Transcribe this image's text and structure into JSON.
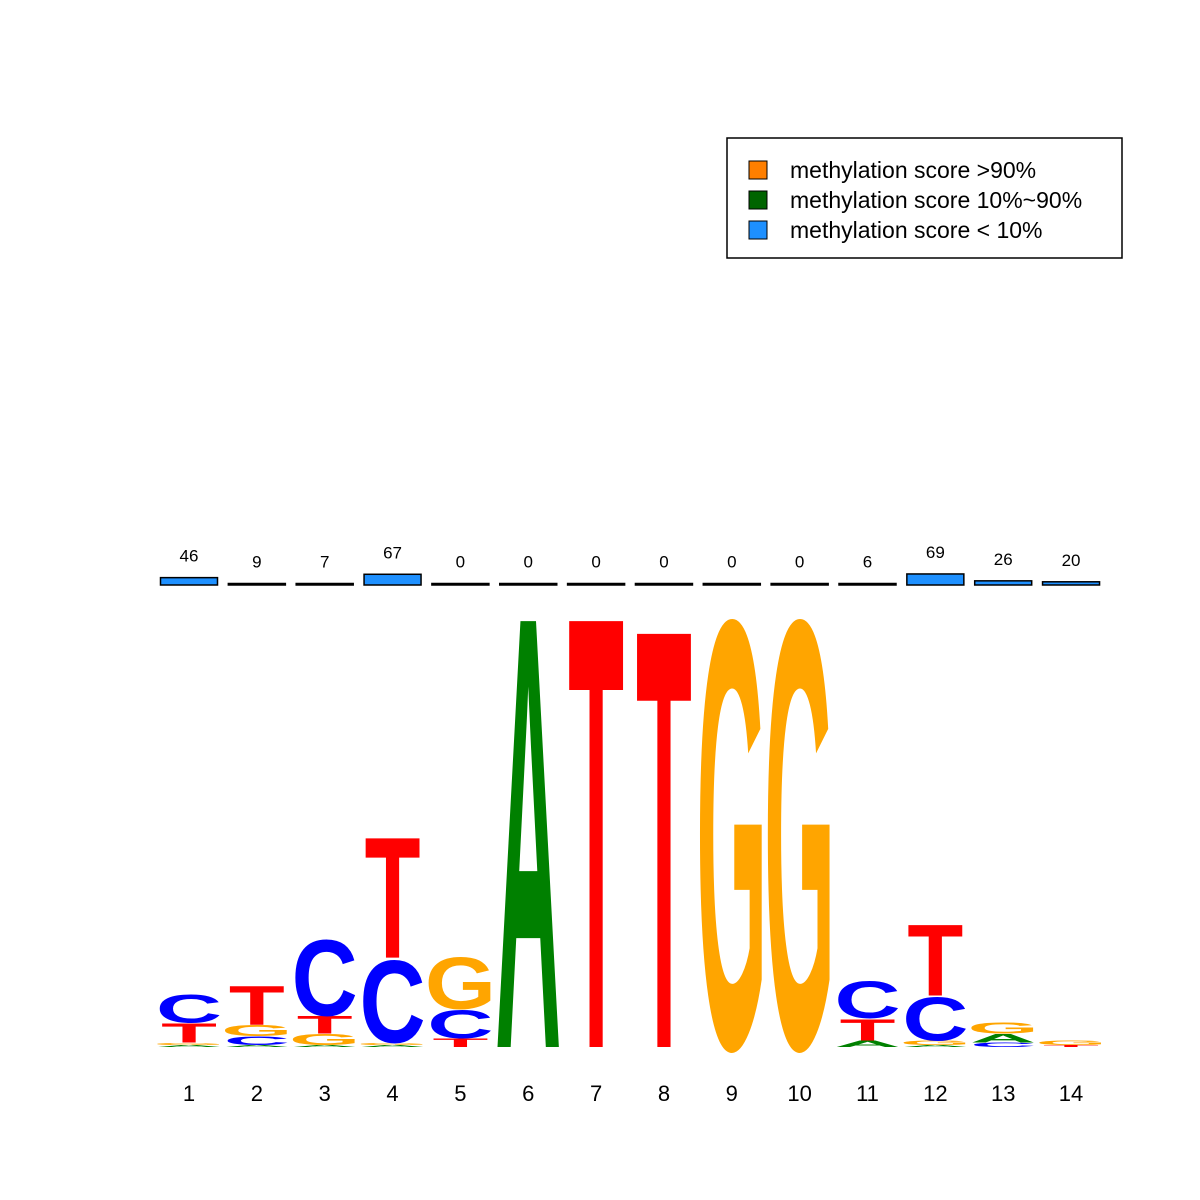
{
  "chart_data": {
    "type": "sequence-logo",
    "legend": {
      "placement": "top-right",
      "entries": [
        {
          "label": "methylation score >90%",
          "color": "#FF7F00"
        },
        {
          "label": "methylation score 10%~90%",
          "color": "#006400"
        },
        {
          "label": "methylation score < 10%",
          "color": "#1E90FF"
        }
      ]
    },
    "letter_colors": {
      "A": "#008000",
      "C": "#0000FF",
      "G": "#FFA500",
      "T": "#FF0000"
    },
    "positions": [
      {
        "pos": "1",
        "count": "46",
        "meth": 0.46,
        "letters": [
          [
            "A",
            0.01
          ],
          [
            "G",
            0.01
          ],
          [
            "T",
            0.09
          ],
          [
            "C",
            0.13
          ]
        ]
      },
      {
        "pos": "2",
        "count": "9",
        "meth": 0.09,
        "letters": [
          [
            "A",
            0.01
          ],
          [
            "C",
            0.04
          ],
          [
            "G",
            0.05
          ],
          [
            "T",
            0.18
          ]
        ]
      },
      {
        "pos": "3",
        "count": "7",
        "meth": 0.07,
        "letters": [
          [
            "A",
            0.01
          ],
          [
            "G",
            0.05
          ],
          [
            "T",
            0.08
          ],
          [
            "C",
            0.35
          ]
        ]
      },
      {
        "pos": "4",
        "count": "67",
        "meth": 0.67,
        "letters": [
          [
            "A",
            0.01
          ],
          [
            "G",
            0.01
          ],
          [
            "C",
            0.38
          ],
          [
            "T",
            0.56
          ]
        ]
      },
      {
        "pos": "5",
        "count": "0",
        "meth": 0.0,
        "letters": [
          [
            "T",
            0.04
          ],
          [
            "C",
            0.13
          ],
          [
            "G",
            0.24
          ]
        ]
      },
      {
        "pos": "6",
        "count": "0",
        "meth": 0.0,
        "letters": [
          [
            "A",
            2.0
          ]
        ]
      },
      {
        "pos": "7",
        "count": "0",
        "meth": 0.0,
        "letters": [
          [
            "T",
            2.0
          ]
        ]
      },
      {
        "pos": "8",
        "count": "0",
        "meth": 0.0,
        "letters": [
          [
            "T",
            1.94
          ]
        ]
      },
      {
        "pos": "9",
        "count": "0",
        "meth": 0.0,
        "letters": [
          [
            "G",
            1.98
          ]
        ]
      },
      {
        "pos": "10",
        "count": "0",
        "meth": 0.0,
        "letters": [
          [
            "G",
            1.98
          ]
        ]
      },
      {
        "pos": "11",
        "count": "6",
        "meth": 0.06,
        "letters": [
          [
            "A",
            0.03
          ],
          [
            "T",
            0.1
          ],
          [
            "C",
            0.17
          ]
        ]
      },
      {
        "pos": "12",
        "count": "69",
        "meth": 0.69,
        "letters": [
          [
            "A",
            0.01
          ],
          [
            "G",
            0.02
          ],
          [
            "C",
            0.2
          ],
          [
            "T",
            0.33
          ]
        ]
      },
      {
        "pos": "13",
        "count": "26",
        "meth": 0.26,
        "letters": [
          [
            "C",
            0.02
          ],
          [
            "A",
            0.04
          ],
          [
            "G",
            0.05
          ]
        ]
      },
      {
        "pos": "14",
        "count": "20",
        "meth": 0.2,
        "letters": [
          [
            "T",
            0.01
          ],
          [
            "G",
            0.02
          ]
        ]
      }
    ]
  }
}
